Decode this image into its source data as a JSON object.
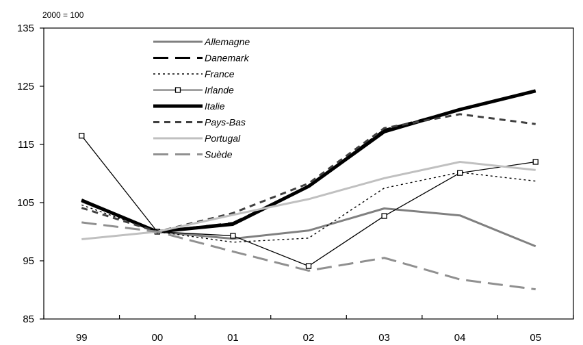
{
  "chart_data": {
    "type": "line",
    "unit_label": "2000 = 100",
    "categories": [
      "99",
      "00",
      "01",
      "02",
      "03",
      "04",
      "05"
    ],
    "ylim": [
      85,
      135
    ],
    "yticks": [
      85,
      95,
      105,
      115,
      125,
      135
    ],
    "grid": false,
    "legend_position": "top-left",
    "series": [
      {
        "name": "Allemagne",
        "color": "#808080",
        "style": "solid",
        "values": [
          105.2,
          100,
          98.8,
          100.2,
          104,
          102.8,
          97.5
        ]
      },
      {
        "name": "Danemark",
        "color": "#000000",
        "style": "long-dash",
        "values": [
          105.5,
          100,
          101.5,
          107.8,
          117.5,
          121,
          124.2
        ]
      },
      {
        "name": "France",
        "color": "#000000",
        "style": "dotted",
        "values": [
          104.6,
          100,
          98.2,
          98.9,
          107.5,
          110.2,
          108.7
        ]
      },
      {
        "name": "Irlande",
        "color": "#000000",
        "style": "solid-square-markers",
        "values": [
          116.5,
          100,
          99.3,
          94.1,
          102.7,
          110.1,
          112
        ]
      },
      {
        "name": "Italie",
        "color": "#000000",
        "style": "thick-solid",
        "values": [
          105.4,
          100,
          101.3,
          107.8,
          117.2,
          121,
          124.2
        ]
      },
      {
        "name": "Pays-Bas",
        "color": "#404040",
        "style": "short-dash",
        "values": [
          104.1,
          100,
          103.2,
          108.3,
          117.8,
          120.2,
          118.5
        ]
      },
      {
        "name": "Portugal",
        "color": "#c0c0c0",
        "style": "solid",
        "values": [
          98.7,
          100,
          102.9,
          105.6,
          109.2,
          112,
          110.6
        ]
      },
      {
        "name": "Suède",
        "color": "#909090",
        "style": "long-dash",
        "values": [
          101.6,
          100,
          96.6,
          93.3,
          95.5,
          91.8,
          90.1
        ]
      }
    ]
  }
}
